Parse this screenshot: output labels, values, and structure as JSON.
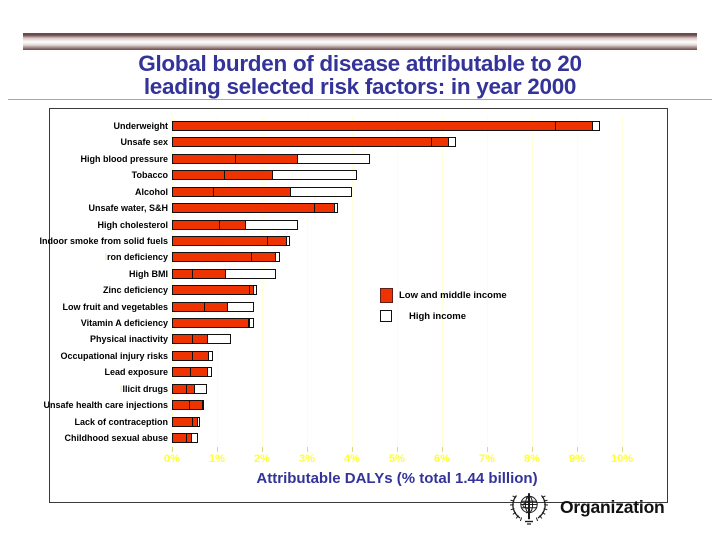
{
  "slide": {
    "title_line1": "Global burden of disease attributable to 20",
    "title_line2": "leading selected risk factors: in year 2000"
  },
  "chart_data": {
    "type": "bar",
    "orientation": "horizontal",
    "title": "",
    "xlabel": "Attributable DALYs (% total 1.44 billion)",
    "ylabel": "",
    "xlim": [
      0,
      10
    ],
    "x_tick_labels": [
      "0%",
      "1%",
      "2%",
      "3%",
      "4%",
      "5%",
      "6%",
      "7%",
      "8%",
      "9%",
      "10%"
    ],
    "grid": "vertical pale-yellow gridlines at each 1%",
    "legend_position": "center-right inside plot",
    "legend": [
      {
        "label": "Low and middle income",
        "color": "#EE3300",
        "swatch": "red-filled-square"
      },
      {
        "label": "High income",
        "color": "#FFFFFF",
        "swatch": "white-square-black-border"
      }
    ],
    "categories": [
      "Underweight",
      "Unsafe sex",
      "High blood pressure",
      "Tobacco",
      "Alcohol",
      "Unsafe water, S&H",
      "High cholesterol",
      "Indoor smoke from solid fuels",
      "Iron deficiency",
      "High BMI",
      "Zinc deficiency",
      "Low fruit and vegetables",
      "Vitamin A deficiency",
      "Physical inactivity",
      "Occupational injury risks",
      "Lead exposure",
      "Illicit drugs",
      "Unsafe health care injections",
      "Lack of contraception",
      "Childhood sexual abuse"
    ],
    "series": [
      {
        "name": "Low and middle income",
        "values": [
          9.35,
          6.15,
          2.8,
          2.25,
          2.65,
          3.62,
          1.65,
          2.55,
          2.3,
          1.2,
          1.82,
          1.25,
          1.74,
          0.8,
          0.82,
          0.8,
          0.5,
          0.68,
          0.58,
          0.45
        ]
      },
      {
        "name": "High income",
        "values": [
          0.15,
          0.15,
          1.6,
          1.85,
          1.35,
          0.08,
          1.15,
          0.08,
          0.1,
          1.1,
          0.08,
          0.58,
          0.08,
          0.5,
          0.1,
          0.08,
          0.28,
          0.04,
          0.04,
          0.12
        ]
      }
    ],
    "lmi_segment_divider_at": [
      8.5,
      5.75,
      1.4,
      1.15,
      0.9,
      3.15,
      1.05,
      2.1,
      1.75,
      0.45,
      1.7,
      0.7,
      1.68,
      0.45,
      0.45,
      0.4,
      0.3,
      0.38,
      0.45,
      0.3
    ],
    "labels_with_pale_initial": [
      "Iron deficiency",
      "Illicit drugs"
    ]
  },
  "colors": {
    "title_navy": "#333399",
    "bar_red": "#EE3300",
    "tick_label_yellow": "#FFFF33",
    "gridline_pale_yellow": "#FFFFD9",
    "band_maroon": "#6B4A4A"
  },
  "footer": {
    "logo_text": "Organization",
    "logo_icon": "who-un-emblem"
  }
}
